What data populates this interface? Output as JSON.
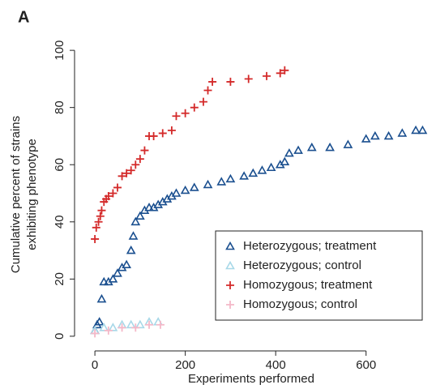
{
  "chart_data": {
    "type": "scatter",
    "panel_label": "A",
    "x_label": "Experiments performed",
    "y_label": [
      "Cumulative percent of strains",
      "exhibiting phenotype"
    ],
    "xlim": [
      -45,
      735
    ],
    "ylim": [
      -4,
      104
    ],
    "xticks": [
      0,
      200,
      400,
      600
    ],
    "yticks": [
      0,
      20,
      40,
      60,
      80,
      100
    ],
    "legend": "bottom-right",
    "series": [
      {
        "name": "Heterozygous; treatment",
        "color": "#1a4f8f",
        "marker": "triangle",
        "x": [
          0,
          5,
          10,
          15,
          20,
          30,
          40,
          50,
          60,
          70,
          80,
          85,
          90,
          100,
          110,
          120,
          130,
          140,
          150,
          160,
          170,
          180,
          200,
          220,
          250,
          280,
          300,
          330,
          350,
          370,
          390,
          410,
          420,
          430,
          450,
          480,
          520,
          560,
          600,
          620,
          650,
          680,
          710,
          725
        ],
        "values": [
          2,
          4,
          5,
          13,
          19,
          19,
          20,
          22,
          24,
          25,
          30,
          35,
          40,
          42,
          44,
          45,
          45,
          46,
          47,
          48,
          49,
          50,
          51,
          52,
          53,
          54,
          55,
          56,
          57,
          58,
          59,
          60,
          61,
          64,
          65,
          66,
          66,
          67,
          69,
          70,
          70,
          71,
          72,
          72
        ]
      },
      {
        "name": "Heterozygous; control",
        "color": "#a8d8e8",
        "marker": "triangle",
        "x": [
          0,
          20,
          40,
          60,
          80,
          100,
          120,
          140
        ],
        "values": [
          2,
          3,
          3,
          4,
          4,
          4,
          5,
          5
        ]
      },
      {
        "name": "Homozygous; treatment",
        "color": "#d42a2a",
        "marker": "plus",
        "x": [
          0,
          3,
          8,
          12,
          15,
          20,
          25,
          30,
          40,
          50,
          60,
          70,
          80,
          90,
          100,
          110,
          120,
          130,
          150,
          170,
          180,
          200,
          220,
          240,
          250,
          260,
          300,
          340,
          380,
          410,
          420
        ],
        "values": [
          34,
          38,
          40,
          42,
          44,
          47,
          48,
          49,
          50,
          52,
          56,
          57,
          58,
          60,
          62,
          65,
          70,
          70,
          71,
          72,
          77,
          78,
          80,
          82,
          86,
          89,
          89,
          90,
          91,
          92,
          93
        ]
      },
      {
        "name": "Homozygous; control",
        "color": "#f4b8c8",
        "marker": "plus",
        "x": [
          0,
          30,
          60,
          90,
          120,
          145
        ],
        "values": [
          1,
          2,
          3,
          3,
          4,
          4
        ]
      }
    ]
  }
}
